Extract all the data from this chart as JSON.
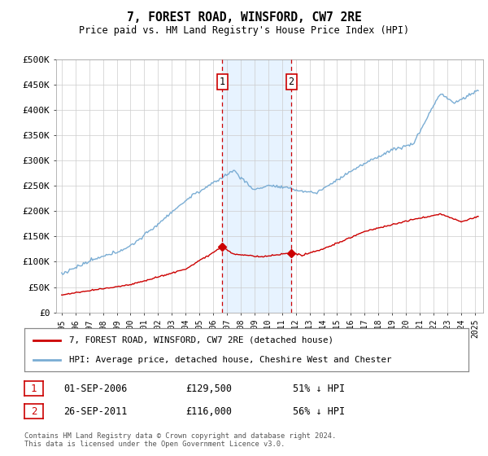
{
  "title": "7, FOREST ROAD, WINSFORD, CW7 2RE",
  "subtitle": "Price paid vs. HM Land Registry's House Price Index (HPI)",
  "legend_line1": "7, FOREST ROAD, WINSFORD, CW7 2RE (detached house)",
  "legend_line2": "HPI: Average price, detached house, Cheshire West and Chester",
  "annotation1_date": "01-SEP-2006",
  "annotation1_price": "£129,500",
  "annotation1_hpi": "51% ↓ HPI",
  "annotation2_date": "26-SEP-2011",
  "annotation2_price": "£116,000",
  "annotation2_hpi": "56% ↓ HPI",
  "footnote": "Contains HM Land Registry data © Crown copyright and database right 2024.\nThis data is licensed under the Open Government Licence v3.0.",
  "hpi_color": "#7aadd4",
  "price_color": "#cc0000",
  "annotation_color": "#cc0000",
  "shading_color": "#ddeeff",
  "ylim": [
    0,
    500000
  ],
  "ytick_vals": [
    0,
    50000,
    100000,
    150000,
    200000,
    250000,
    300000,
    350000,
    400000,
    450000,
    500000
  ],
  "ytick_labels": [
    "£0",
    "£50K",
    "£100K",
    "£150K",
    "£200K",
    "£250K",
    "£300K",
    "£350K",
    "£400K",
    "£450K",
    "£500K"
  ]
}
